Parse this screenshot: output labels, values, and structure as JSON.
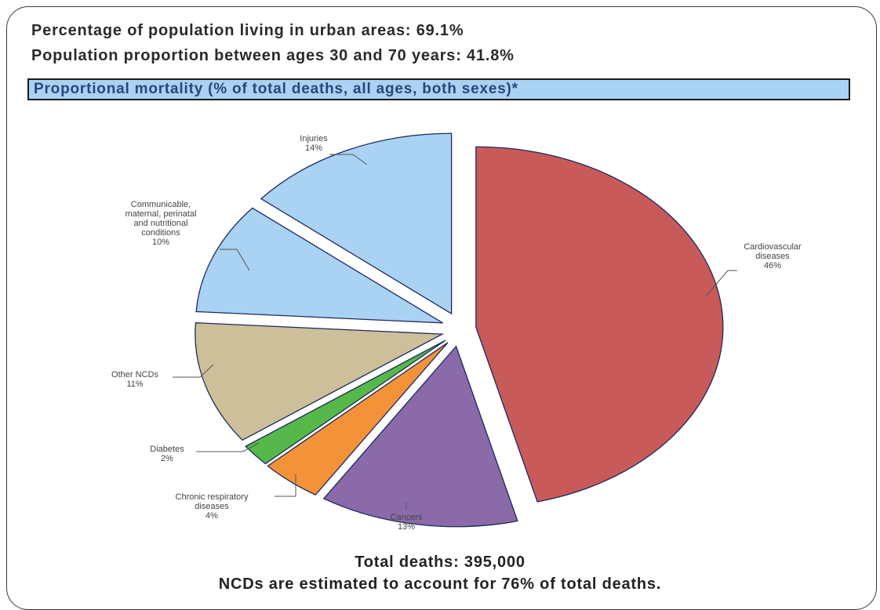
{
  "header": {
    "urban": "Percentage of population living in urban areas: 69.1%",
    "age": "Population proportion between ages 30 and 70 years:  41.8%"
  },
  "chart_data": {
    "type": "pie",
    "title": "Proportional mortality (% of total deaths, all ages, both sexes)*",
    "slices": [
      {
        "label_lines": [
          "Cardiovascular",
          "diseases",
          "46%"
        ],
        "value": 46,
        "color": "#c95a5a"
      },
      {
        "label_lines": [
          "Cancers",
          "13%"
        ],
        "value": 13,
        "color": "#8a6aa9"
      },
      {
        "label_lines": [
          "Chronic respiratory",
          "diseases",
          "4%"
        ],
        "value": 4,
        "color": "#f4923a"
      },
      {
        "label_lines": [
          "Diabetes",
          "2%"
        ],
        "value": 2,
        "color": "#57b84a"
      },
      {
        "label_lines": [
          "Other NCDs",
          "11%"
        ],
        "value": 11,
        "color": "#cdbf9a"
      },
      {
        "label_lines": [
          "Communicable,",
          "maternal, perinatal",
          "and nutritional",
          "conditions",
          "10%"
        ],
        "value": 10,
        "color": "#a9d2f3"
      },
      {
        "label_lines": [
          "Injuries",
          "14%"
        ],
        "value": 14,
        "color": "#a9d2f3"
      }
    ]
  },
  "footer": {
    "total": "Total deaths: 395,000",
    "note": "NCDs are estimated to account for 76% of total deaths."
  }
}
